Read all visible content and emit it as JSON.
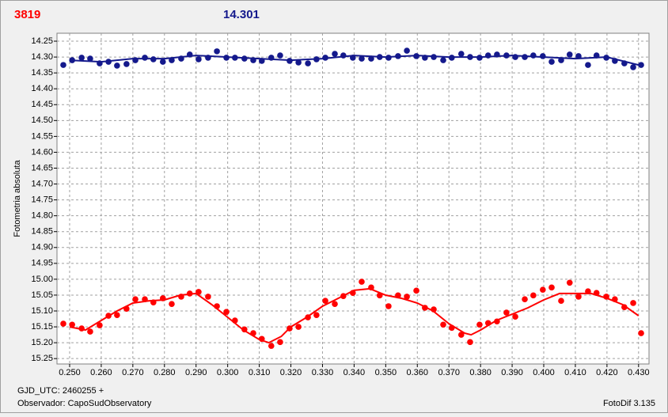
{
  "chart_data": {
    "type": "scatter",
    "header_labels": [
      {
        "text": "3819",
        "color": "#ff0000"
      },
      {
        "text": "14.301",
        "color": "#14198c"
      }
    ],
    "y_label": "Fotometria absoluta",
    "footer_left": [
      "GJD_UTC: 2460255 +",
      "Observador: CapoSudObservatory"
    ],
    "footer_right": "FotoDif 3.135",
    "xlim": [
      0.246,
      0.4333
    ],
    "ylim": [
      14.225,
      15.267
    ],
    "y_inverted": true,
    "grid": true,
    "xticks": [
      {
        "value": 0.25,
        "label": "0.250"
      },
      {
        "value": 0.26,
        "label": "0.260"
      },
      {
        "value": 0.27,
        "label": "0.270"
      },
      {
        "value": 0.28,
        "label": "0.280"
      },
      {
        "value": 0.29,
        "label": "0.290"
      },
      {
        "value": 0.3,
        "label": "0.300"
      },
      {
        "value": 0.31,
        "label": "0.310"
      },
      {
        "value": 0.32,
        "label": "0.320"
      },
      {
        "value": 0.33,
        "label": "0.330"
      },
      {
        "value": 0.34,
        "label": "0.340"
      },
      {
        "value": 0.35,
        "label": "0.350"
      },
      {
        "value": 0.36,
        "label": "0.360"
      },
      {
        "value": 0.37,
        "label": "0.370"
      },
      {
        "value": 0.38,
        "label": "0.380"
      },
      {
        "value": 0.39,
        "label": "0.390"
      },
      {
        "value": 0.4,
        "label": "0.400"
      },
      {
        "value": 0.41,
        "label": "0.410"
      },
      {
        "value": 0.42,
        "label": "0.420"
      },
      {
        "value": 0.43,
        "label": "0.430"
      }
    ],
    "yticks": [
      14.25,
      {
        "value": 14.3,
        "label": "14.30"
      },
      14.35,
      {
        "value": 14.4,
        "label": "14.40"
      },
      14.45,
      {
        "value": 14.5,
        "label": "14.50"
      },
      14.55,
      {
        "value": 14.6,
        "label": "14.60"
      },
      14.65,
      {
        "value": 14.7,
        "label": "14.70"
      },
      14.75,
      {
        "value": 14.8,
        "label": "14.80"
      },
      14.85,
      {
        "value": 14.9,
        "label": "14.90"
      },
      14.95,
      {
        "value": 15.0,
        "label": "15.00"
      },
      15.05,
      {
        "value": 15.1,
        "label": "15.10"
      },
      15.15,
      {
        "value": 15.2,
        "label": "15.20"
      },
      15.25
    ],
    "series": [
      {
        "color": "#14198c",
        "x": [
          0.248,
          0.2508,
          0.2538,
          0.2565,
          0.2595,
          0.2623,
          0.265,
          0.268,
          0.2708,
          0.2738,
          0.2765,
          0.2795,
          0.2823,
          0.2853,
          0.288,
          0.2908,
          0.2938,
          0.2966,
          0.2996,
          0.3023,
          0.3053,
          0.3081,
          0.3108,
          0.3138,
          0.3166,
          0.3196,
          0.3224,
          0.3254,
          0.3281,
          0.3309,
          0.3339,
          0.3366,
          0.3396,
          0.3424,
          0.3454,
          0.3481,
          0.3509,
          0.3539,
          0.3567,
          0.3597,
          0.3624,
          0.3652,
          0.3682,
          0.3709,
          0.3739,
          0.3767,
          0.3797,
          0.3824,
          0.3852,
          0.3882,
          0.391,
          0.394,
          0.3967,
          0.3997,
          0.4025,
          0.4055,
          0.4082,
          0.411,
          0.414,
          0.4167,
          0.4198,
          0.4225,
          0.4255,
          0.4283,
          0.4308
        ],
        "values": [
          14.325,
          14.31,
          14.302,
          14.305,
          14.32,
          14.315,
          14.327,
          14.322,
          14.31,
          14.302,
          14.307,
          14.315,
          14.31,
          14.305,
          14.292,
          14.307,
          14.302,
          14.282,
          14.302,
          14.302,
          14.305,
          14.31,
          14.312,
          14.302,
          14.295,
          14.312,
          14.317,
          14.32,
          14.307,
          14.302,
          14.29,
          14.295,
          14.302,
          14.305,
          14.305,
          14.3,
          14.302,
          14.297,
          14.28,
          14.297,
          14.302,
          14.3,
          14.31,
          14.302,
          14.29,
          14.3,
          14.302,
          14.295,
          14.292,
          14.295,
          14.3,
          14.3,
          14.295,
          14.297,
          14.315,
          14.31,
          14.292,
          14.297,
          14.325,
          14.295,
          14.302,
          14.312,
          14.32,
          14.332,
          14.325
        ],
        "fit_x": [
          0.25,
          0.26,
          0.27,
          0.28,
          0.29,
          0.3,
          0.31,
          0.32,
          0.33,
          0.34,
          0.35,
          0.36,
          0.37,
          0.38,
          0.39,
          0.4,
          0.41,
          0.42,
          0.43
        ],
        "fit_values": [
          14.31,
          14.315,
          14.305,
          14.305,
          14.295,
          14.3,
          14.305,
          14.31,
          14.305,
          14.295,
          14.3,
          14.295,
          14.3,
          14.3,
          14.295,
          14.3,
          14.305,
          14.3,
          14.325
        ]
      },
      {
        "color": "#ff0000",
        "x": [
          0.248,
          0.2508,
          0.2538,
          0.2565,
          0.2595,
          0.2623,
          0.265,
          0.268,
          0.2708,
          0.2738,
          0.2765,
          0.2795,
          0.2823,
          0.2853,
          0.288,
          0.2908,
          0.2938,
          0.2966,
          0.2996,
          0.3023,
          0.3053,
          0.3081,
          0.3108,
          0.3138,
          0.3166,
          0.3196,
          0.3224,
          0.3254,
          0.3281,
          0.3309,
          0.3339,
          0.3366,
          0.3396,
          0.3424,
          0.3454,
          0.3481,
          0.3509,
          0.3539,
          0.3567,
          0.3597,
          0.3624,
          0.3652,
          0.3682,
          0.3709,
          0.3739,
          0.3767,
          0.3797,
          0.3824,
          0.3852,
          0.3882,
          0.391,
          0.394,
          0.3967,
          0.3997,
          0.4025,
          0.4055,
          0.4082,
          0.411,
          0.414,
          0.4167,
          0.4198,
          0.4225,
          0.4255,
          0.4283,
          0.4308
        ],
        "values": [
          15.14,
          15.143,
          15.155,
          15.165,
          15.145,
          15.115,
          15.113,
          15.093,
          15.063,
          15.063,
          15.073,
          15.06,
          15.078,
          15.055,
          15.045,
          15.04,
          15.055,
          15.085,
          15.103,
          15.13,
          15.158,
          15.17,
          15.188,
          15.21,
          15.198,
          15.155,
          15.15,
          15.12,
          15.113,
          15.068,
          15.078,
          15.053,
          15.043,
          15.008,
          15.026,
          15.051,
          15.085,
          15.051,
          15.055,
          15.036,
          15.09,
          15.095,
          15.143,
          15.153,
          15.175,
          15.198,
          15.143,
          15.138,
          15.133,
          15.105,
          15.118,
          15.063,
          15.051,
          15.033,
          15.026,
          15.068,
          15.011,
          15.055,
          15.038,
          15.043,
          15.055,
          15.063,
          15.088,
          15.075,
          15.17
        ],
        "fit_x": [
          0.25,
          0.255,
          0.26,
          0.265,
          0.27,
          0.275,
          0.28,
          0.285,
          0.29,
          0.295,
          0.3,
          0.305,
          0.31,
          0.313,
          0.317,
          0.32,
          0.325,
          0.33,
          0.335,
          0.34,
          0.345,
          0.35,
          0.355,
          0.36,
          0.365,
          0.37,
          0.375,
          0.377,
          0.38,
          0.385,
          0.39,
          0.395,
          0.4,
          0.405,
          0.41,
          0.415,
          0.42,
          0.425,
          0.43
        ],
        "fit_values": [
          15.15,
          15.16,
          15.13,
          15.1,
          15.075,
          15.068,
          15.065,
          15.05,
          15.045,
          15.08,
          15.12,
          15.16,
          15.19,
          15.2,
          15.18,
          15.15,
          15.12,
          15.085,
          15.06,
          15.035,
          15.03,
          15.05,
          15.06,
          15.075,
          15.1,
          15.14,
          15.17,
          15.175,
          15.16,
          15.13,
          15.11,
          15.09,
          15.065,
          15.045,
          15.045,
          15.045,
          15.06,
          15.08,
          15.115
        ]
      }
    ]
  }
}
